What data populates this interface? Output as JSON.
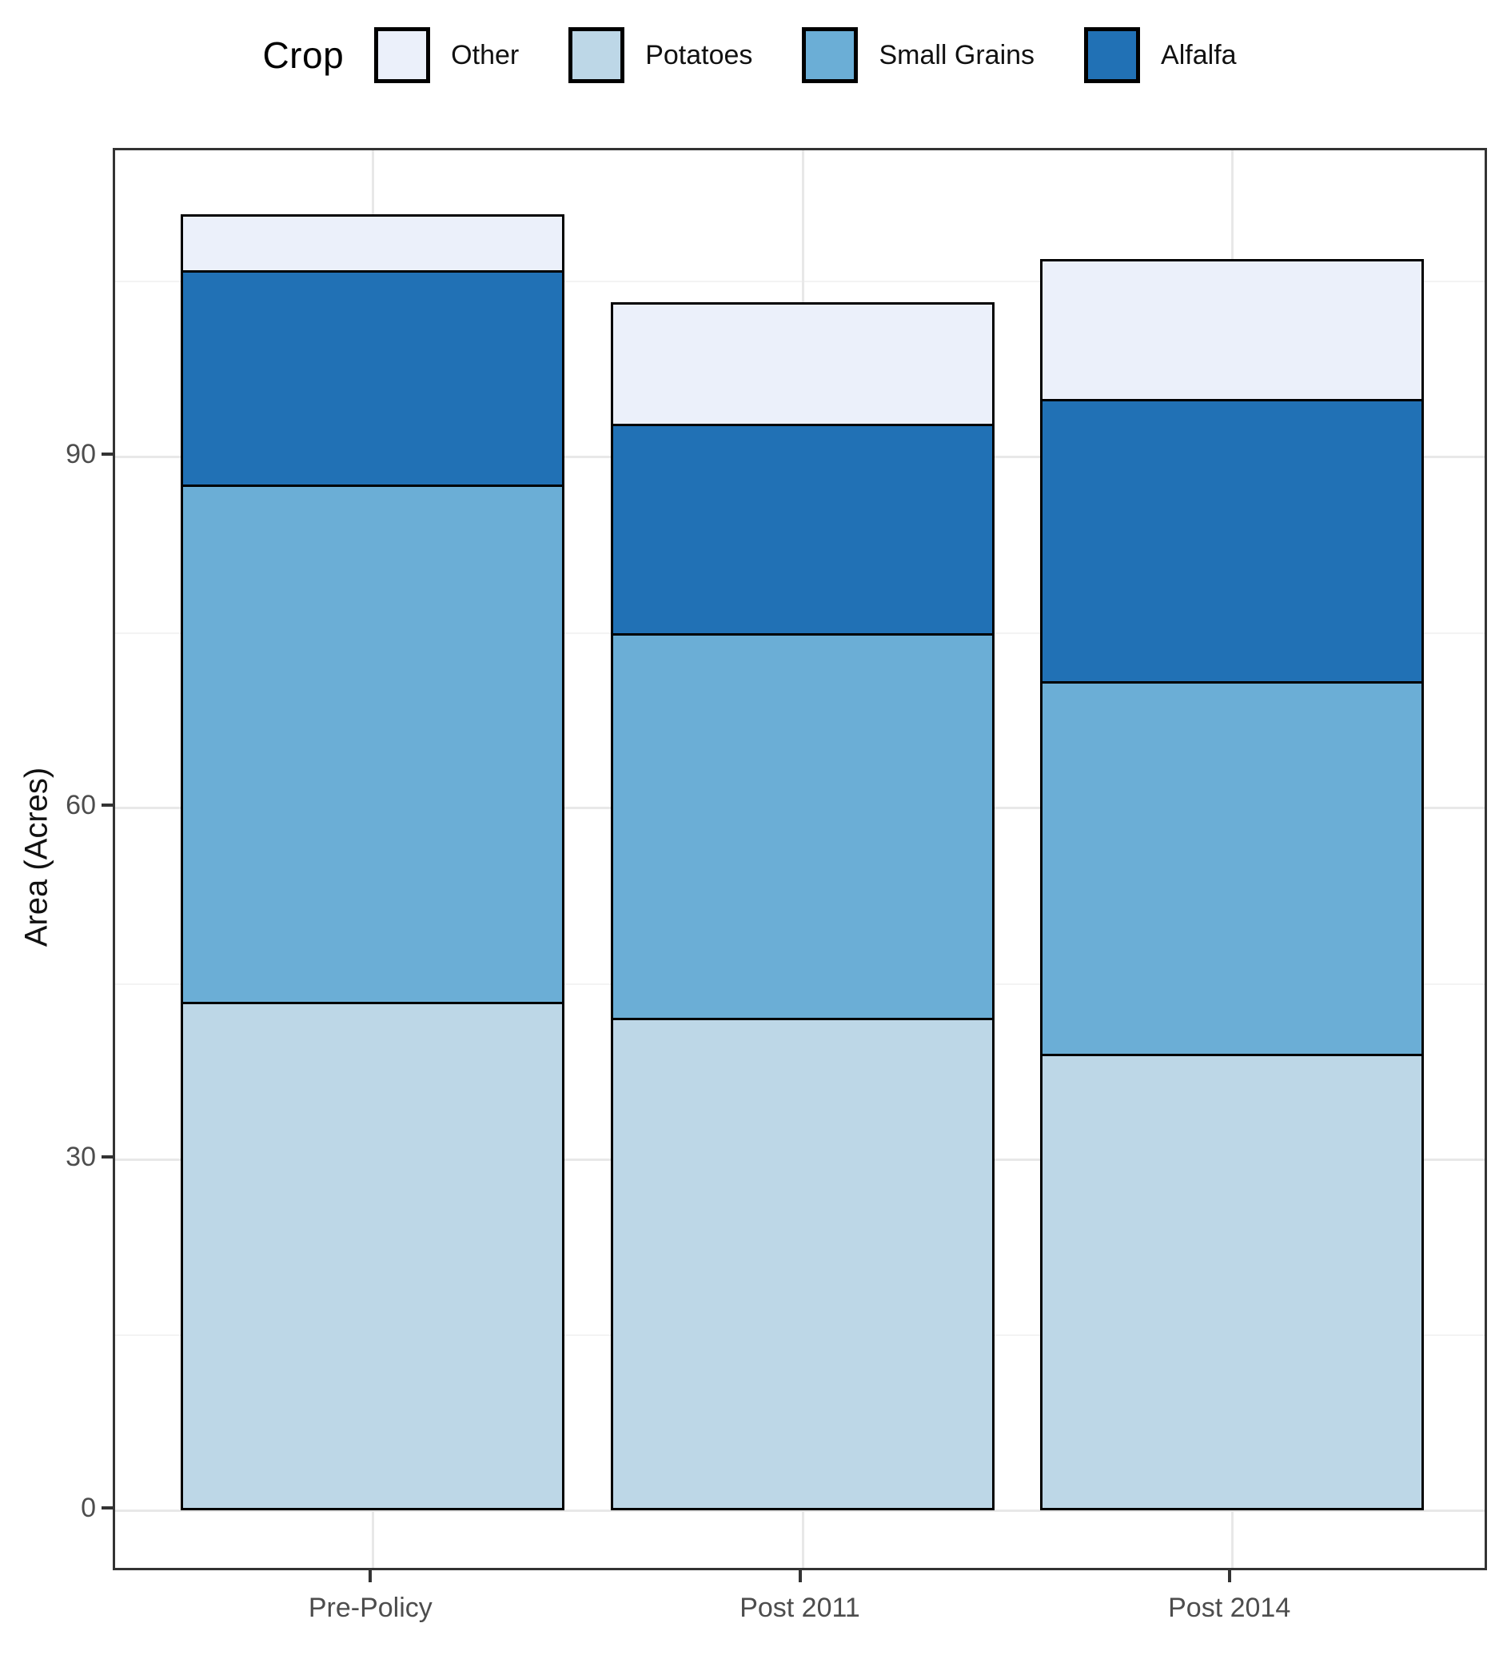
{
  "legend": {
    "title": "Crop",
    "items": [
      {
        "label": "Other",
        "color": "#ebf0fa"
      },
      {
        "label": "Potatoes",
        "color": "#bdd7e7"
      },
      {
        "label": "Small Grains",
        "color": "#6baed6"
      },
      {
        "label": "Alfalfa",
        "color": "#2171b5"
      }
    ]
  },
  "y_axis": {
    "title": "Area (Acres)",
    "ticks": [
      0,
      30,
      60,
      90
    ]
  },
  "x_axis": {
    "labels": [
      "Pre-Policy",
      "Post 2011",
      "Post 2014"
    ]
  },
  "colors": {
    "bar_outline": "#000000",
    "panel_border": "#333333",
    "grid_major": "#e8e8e8",
    "grid_minor": "#f3f3f3",
    "axis_text": "#4d4d4d"
  },
  "chart_data": {
    "type": "bar",
    "stacked": true,
    "categories": [
      "Pre-Policy",
      "Post 2011",
      "Post 2014"
    ],
    "series": [
      {
        "name": "Potatoes",
        "color": "#bdd7e7",
        "values": [
          43.4,
          42.1,
          39.0
        ]
      },
      {
        "name": "Small Grains",
        "color": "#6baed6",
        "values": [
          44.2,
          32.8,
          31.8
        ]
      },
      {
        "name": "Alfalfa",
        "color": "#2171b5",
        "values": [
          18.3,
          17.9,
          24.1
        ]
      },
      {
        "name": "Other",
        "color": "#ebf0fa",
        "values": [
          4.8,
          10.4,
          12.0
        ]
      }
    ],
    "totals": [
      110.7,
      103.2,
      106.9
    ],
    "title": "",
    "xlabel": "",
    "ylabel": "Area (Acres)",
    "ylim": [
      0,
      116
    ],
    "minor_grid_step": 15,
    "grid": true,
    "legend_position": "top"
  }
}
